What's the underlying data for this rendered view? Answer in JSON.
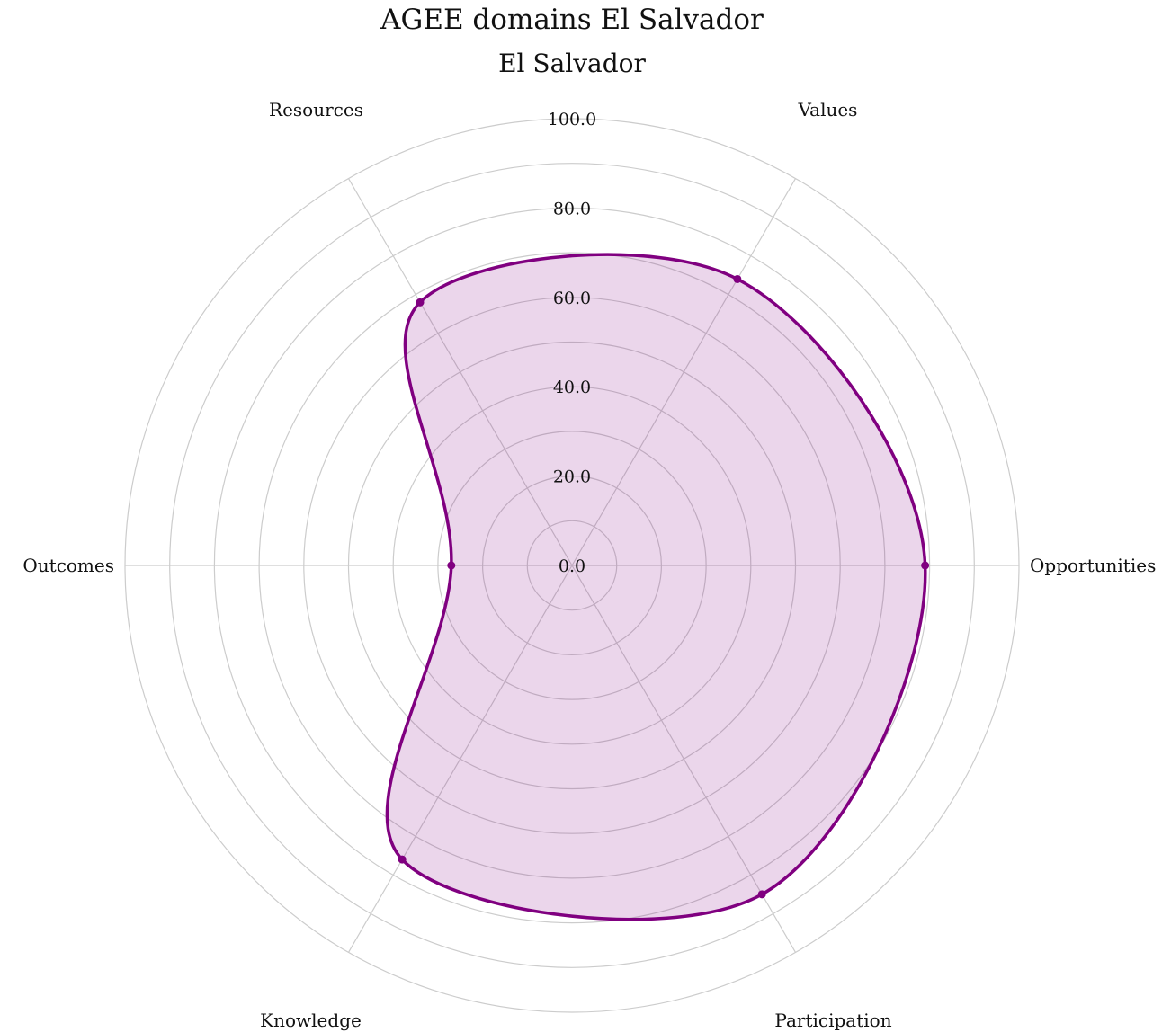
{
  "chart_data": {
    "type": "radar",
    "title": "AGEE domains El Salvador",
    "subtitle": "El Salvador",
    "axes": [
      "Opportunities",
      "Values",
      "Resources",
      "Outcomes",
      "Knowledge",
      "Participation"
    ],
    "r_range": [
      0,
      100
    ],
    "r_ticks": [
      "0.0",
      "20.0",
      "40.0",
      "60.0",
      "80.0",
      "100.0"
    ],
    "r_tick_values": [
      0,
      20,
      40,
      60,
      80,
      100
    ],
    "grid": true,
    "legend": "none",
    "series": [
      {
        "values": [
          79,
          74,
          68,
          27,
          76,
          85
        ],
        "line_color": "#800080",
        "fill_color": "#800080",
        "fill_opacity": 0.16
      }
    ]
  }
}
